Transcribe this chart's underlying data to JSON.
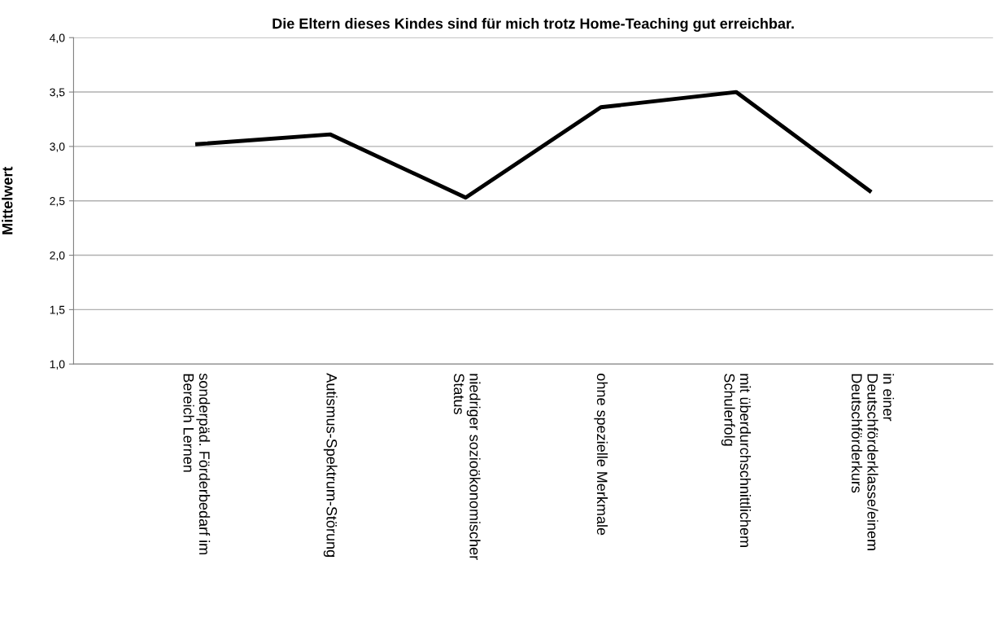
{
  "chart_data": {
    "type": "line",
    "title": "Die Eltern dieses Kindes sind für mich trotz Home-Teaching gut erreichbar.",
    "ylabel": "Mittelwert",
    "categories": [
      "sonderpäd. Förderbedarf im\nBereich Lernen",
      "Autismus-Spektrum-Störung",
      "niedriger sozioökonomischer\nStatus",
      "ohne spezielle Merkmale",
      "mit überdurchschnittlichem\nSchulerfolg",
      "in einer\nDeutschförderklasse/einem\nDeutschförderkurs"
    ],
    "series": [
      {
        "color": "#000000",
        "values": [
          3.02,
          3.11,
          2.53,
          3.36,
          3.5,
          2.58
        ]
      }
    ],
    "ylim": [
      1.0,
      4.0
    ],
    "yticks": [
      {
        "value": 1.0,
        "label": "1,0"
      },
      {
        "value": 1.5,
        "label": "1,5"
      },
      {
        "value": 2.0,
        "label": "2,0"
      },
      {
        "value": 2.5,
        "label": "2,5"
      },
      {
        "value": 3.0,
        "label": "3,0"
      },
      {
        "value": 3.5,
        "label": "3,5"
      },
      {
        "value": 4.0,
        "label": "4,0"
      }
    ],
    "grid": "y",
    "marker": "none",
    "line_style": "solid"
  }
}
